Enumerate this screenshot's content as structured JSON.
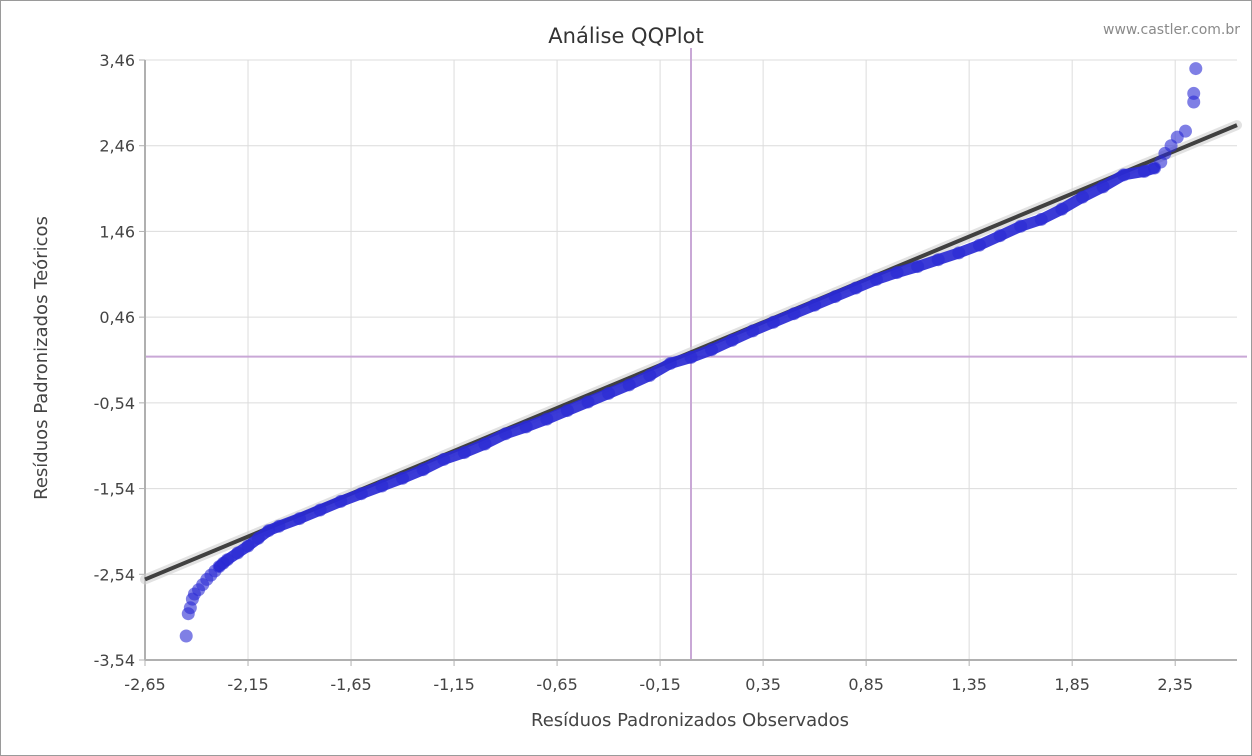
{
  "watermark": "www.castler.com.br",
  "chart_data": {
    "type": "scatter",
    "title": "Análise QQPlot",
    "xlabel": "Resíduos Padronizados Observados",
    "ylabel": "Resíduos Padronizados Teóricos",
    "xlim": [
      -2.65,
      2.65
    ],
    "ylim": [
      -3.54,
      3.46
    ],
    "x_ticks": [
      -2.65,
      -2.15,
      -1.65,
      -1.15,
      -0.65,
      -0.15,
      0.35,
      0.85,
      1.35,
      1.85,
      2.35
    ],
    "x_tick_labels": [
      "-2,65",
      "-2,15",
      "-1,65",
      "-1,15",
      "-0,65",
      "-0,15",
      "0,35",
      "0,85",
      "1,35",
      "1,85",
      "2,35"
    ],
    "y_ticks": [
      3.46,
      2.46,
      1.46,
      0.46,
      -0.54,
      -1.54,
      -2.54,
      -3.54
    ],
    "y_tick_labels": [
      "3,46",
      "2,46",
      "1,46",
      "0,46",
      "-0,54",
      "-1,54",
      "-2,54",
      "-3,54"
    ],
    "grid": true,
    "reference_line": {
      "x0": -2.65,
      "y0": -2.6,
      "x1": 2.65,
      "y1": 2.7
    },
    "crosshair": {
      "x": 0.0,
      "y": 0.0
    },
    "marker_color": "#2a2ad4",
    "line_color": "#404040",
    "crosshair_color": "#c9a8d6",
    "series": [
      {
        "values": [
          [
            -2.45,
            -3.26
          ],
          [
            -2.44,
            -3.0
          ],
          [
            -2.43,
            -2.93
          ],
          [
            -2.42,
            -2.83
          ],
          [
            -2.41,
            -2.77
          ],
          [
            -2.39,
            -2.72
          ],
          [
            -2.37,
            -2.66
          ],
          [
            -2.35,
            -2.6
          ],
          [
            -2.33,
            -2.55
          ],
          [
            -2.31,
            -2.5
          ],
          [
            -2.29,
            -2.45
          ],
          [
            -2.27,
            -2.41
          ],
          [
            -2.25,
            -2.37
          ],
          [
            -2.2,
            -2.29
          ],
          [
            -2.15,
            -2.21
          ],
          [
            -2.1,
            -2.12
          ],
          [
            -2.05,
            -2.03
          ],
          [
            -2.0,
            -1.98
          ],
          [
            -1.9,
            -1.89
          ],
          [
            -1.8,
            -1.79
          ],
          [
            -1.7,
            -1.69
          ],
          [
            -1.6,
            -1.6
          ],
          [
            -1.5,
            -1.51
          ],
          [
            -1.4,
            -1.42
          ],
          [
            -1.3,
            -1.32
          ],
          [
            -1.2,
            -1.2
          ],
          [
            -1.1,
            -1.12
          ],
          [
            -1.0,
            -1.02
          ],
          [
            -0.9,
            -0.9
          ],
          [
            -0.8,
            -0.82
          ],
          [
            -0.7,
            -0.73
          ],
          [
            -0.6,
            -0.63
          ],
          [
            -0.5,
            -0.53
          ],
          [
            -0.4,
            -0.43
          ],
          [
            -0.3,
            -0.33
          ],
          [
            -0.2,
            -0.22
          ],
          [
            -0.1,
            -0.08
          ],
          [
            0.0,
            -0.01
          ],
          [
            0.1,
            0.08
          ],
          [
            0.2,
            0.19
          ],
          [
            0.3,
            0.3
          ],
          [
            0.4,
            0.4
          ],
          [
            0.5,
            0.5
          ],
          [
            0.6,
            0.6
          ],
          [
            0.7,
            0.7
          ],
          [
            0.8,
            0.8
          ],
          [
            0.9,
            0.9
          ],
          [
            1.0,
            0.98
          ],
          [
            1.1,
            1.05
          ],
          [
            1.2,
            1.13
          ],
          [
            1.3,
            1.21
          ],
          [
            1.4,
            1.3
          ],
          [
            1.5,
            1.41
          ],
          [
            1.6,
            1.52
          ],
          [
            1.7,
            1.6
          ],
          [
            1.8,
            1.72
          ],
          [
            1.9,
            1.86
          ],
          [
            2.0,
            1.98
          ],
          [
            2.1,
            2.12
          ],
          [
            2.2,
            2.16
          ],
          [
            2.25,
            2.2
          ],
          [
            2.28,
            2.27
          ],
          [
            2.3,
            2.37
          ],
          [
            2.33,
            2.46
          ],
          [
            2.36,
            2.56
          ],
          [
            2.4,
            2.63
          ],
          [
            2.44,
            2.97
          ],
          [
            2.44,
            3.07
          ],
          [
            2.45,
            3.36
          ]
        ]
      }
    ]
  }
}
